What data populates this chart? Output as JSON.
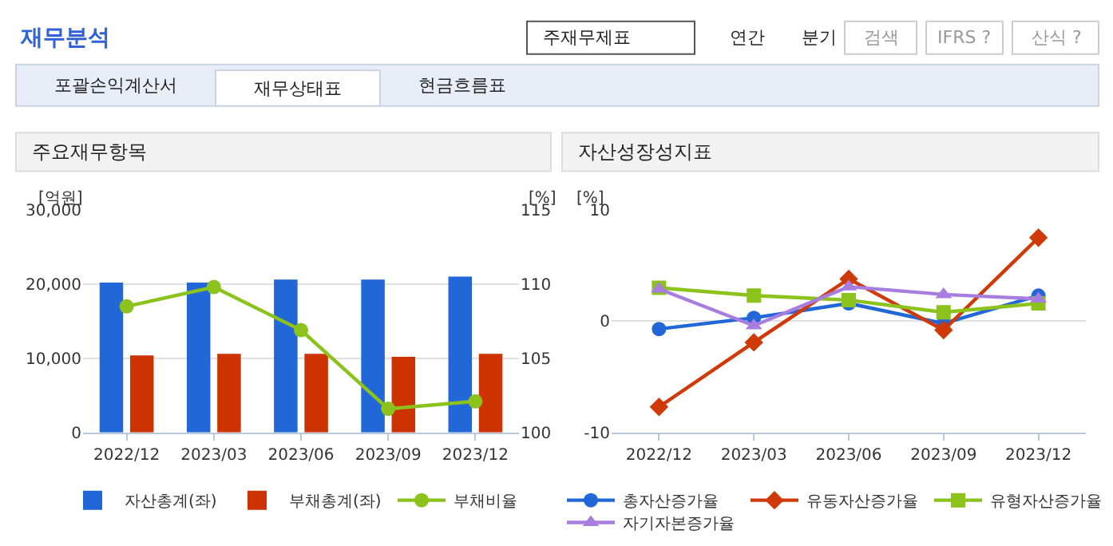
{
  "chart_data": [
    {
      "type": "other",
      "title": "재무분석",
      "annotations": [
        "주재무제표",
        "연간",
        "분기",
        "검색",
        "IFRS ?",
        "산식 ?",
        "포괄손익계산서",
        "재무상태표",
        "현금흐름표"
      ]
    },
    {
      "type": "bar",
      "title": "주요재무항목",
      "ylabel": "[억원]",
      "y2label": "[%]",
      "categories": [
        "2022/12",
        "2023/03",
        "2023/06",
        "2023/09",
        "2023/12"
      ],
      "ylim": [
        0,
        30000
      ],
      "yticks": [
        {
          "value": 0,
          "label": "0"
        },
        {
          "value": 10000,
          "label": "10,000"
        },
        {
          "value": 20000,
          "label": "20,000"
        },
        {
          "value": 30000,
          "label": "30,000"
        }
      ],
      "y2lim": [
        100,
        115
      ],
      "y2ticks": [
        100,
        105,
        110,
        115
      ],
      "grid": "y",
      "legend": "bottom",
      "series": [
        {
          "name": "자산총계(좌)",
          "type": "bar",
          "color": "#2167d8",
          "values": [
            20200,
            20200,
            20600,
            20600,
            21000
          ]
        },
        {
          "name": "부채총계(좌)",
          "type": "bar",
          "color": "#cc3300",
          "values": [
            10400,
            10600,
            10600,
            10200,
            10600
          ]
        },
        {
          "name": "부채비율",
          "type": "line",
          "axis": "y2",
          "marker": "circle",
          "color": "#8cc21c",
          "values": [
            108.5,
            109.8,
            106.9,
            101.6,
            102.1
          ]
        }
      ]
    },
    {
      "type": "line",
      "title": "자산성장성지표",
      "ylabel": "[%]",
      "categories": [
        "2022/12",
        "2023/03",
        "2023/06",
        "2023/09",
        "2023/12"
      ],
      "ylim": [
        -10,
        10
      ],
      "yticks": [
        -10,
        0,
        10
      ],
      "grid": "y",
      "legend": "bottom",
      "series": [
        {
          "name": "총자산증가율",
          "marker": "circle",
          "color": "#2167d8",
          "values": [
            -0.7,
            0.3,
            1.6,
            -0.2,
            2.3
          ]
        },
        {
          "name": "유동자산증가율",
          "marker": "diamond",
          "color": "#d03a08",
          "values": [
            -7.7,
            -1.9,
            3.8,
            -0.8,
            7.5
          ]
        },
        {
          "name": "유형자산증가율",
          "marker": "square",
          "color": "#8cc21c",
          "values": [
            3.0,
            2.3,
            1.9,
            0.8,
            1.6
          ]
        },
        {
          "name": "자기자본증가율",
          "marker": "triangle",
          "color": "#a77de0",
          "values": [
            2.9,
            -0.4,
            3.1,
            2.4,
            2.0
          ]
        }
      ]
    }
  ]
}
